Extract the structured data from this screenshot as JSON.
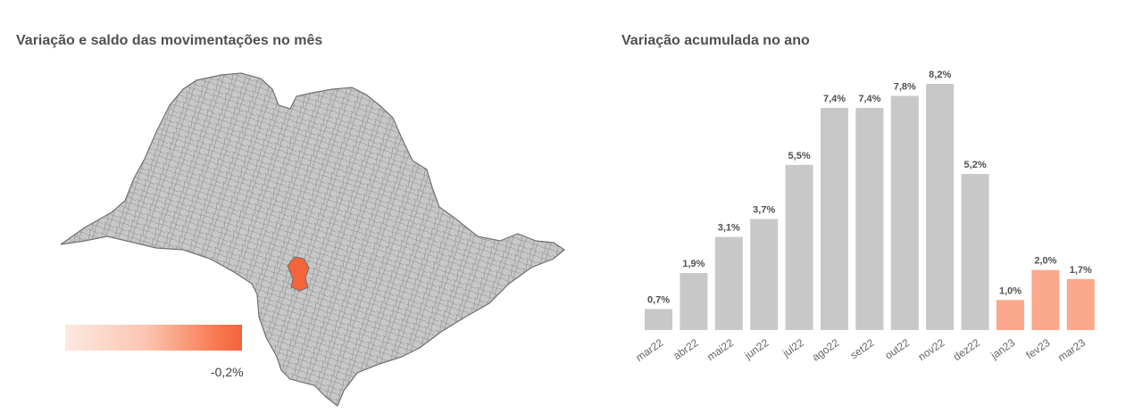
{
  "map": {
    "title": "Variação e saldo das movimentações no mês",
    "legend": {
      "value_label": "-0,2%"
    },
    "colors": {
      "region_fill": "#c8c8c8",
      "region_stroke": "#6e6e6e",
      "highlight": "#f4633a"
    }
  },
  "chart_data": {
    "type": "bar",
    "title": "Variação acumulada no ano",
    "xlabel": "",
    "ylabel": "",
    "categories": [
      "mar22",
      "abr22",
      "mai22",
      "jun22",
      "jul22",
      "ago22",
      "set22",
      "out22",
      "nov22",
      "dez22",
      "jan23",
      "fev23",
      "mar23"
    ],
    "values": [
      0.7,
      1.9,
      3.1,
      3.7,
      5.5,
      7.4,
      7.4,
      7.8,
      8.2,
      5.2,
      1.0,
      2.0,
      1.7
    ],
    "data_labels": [
      "0,7%",
      "1,9%",
      "3,1%",
      "3,7%",
      "5,5%",
      "7,4%",
      "7,4%",
      "7,8%",
      "8,2%",
      "5,2%",
      "1,0%",
      "2,0%",
      "1,7%"
    ],
    "ylim": [
      0,
      8.2
    ],
    "grid": false,
    "colors": {
      "year_2022": "#c8c8c8",
      "year_2023": "#fca88c"
    }
  }
}
